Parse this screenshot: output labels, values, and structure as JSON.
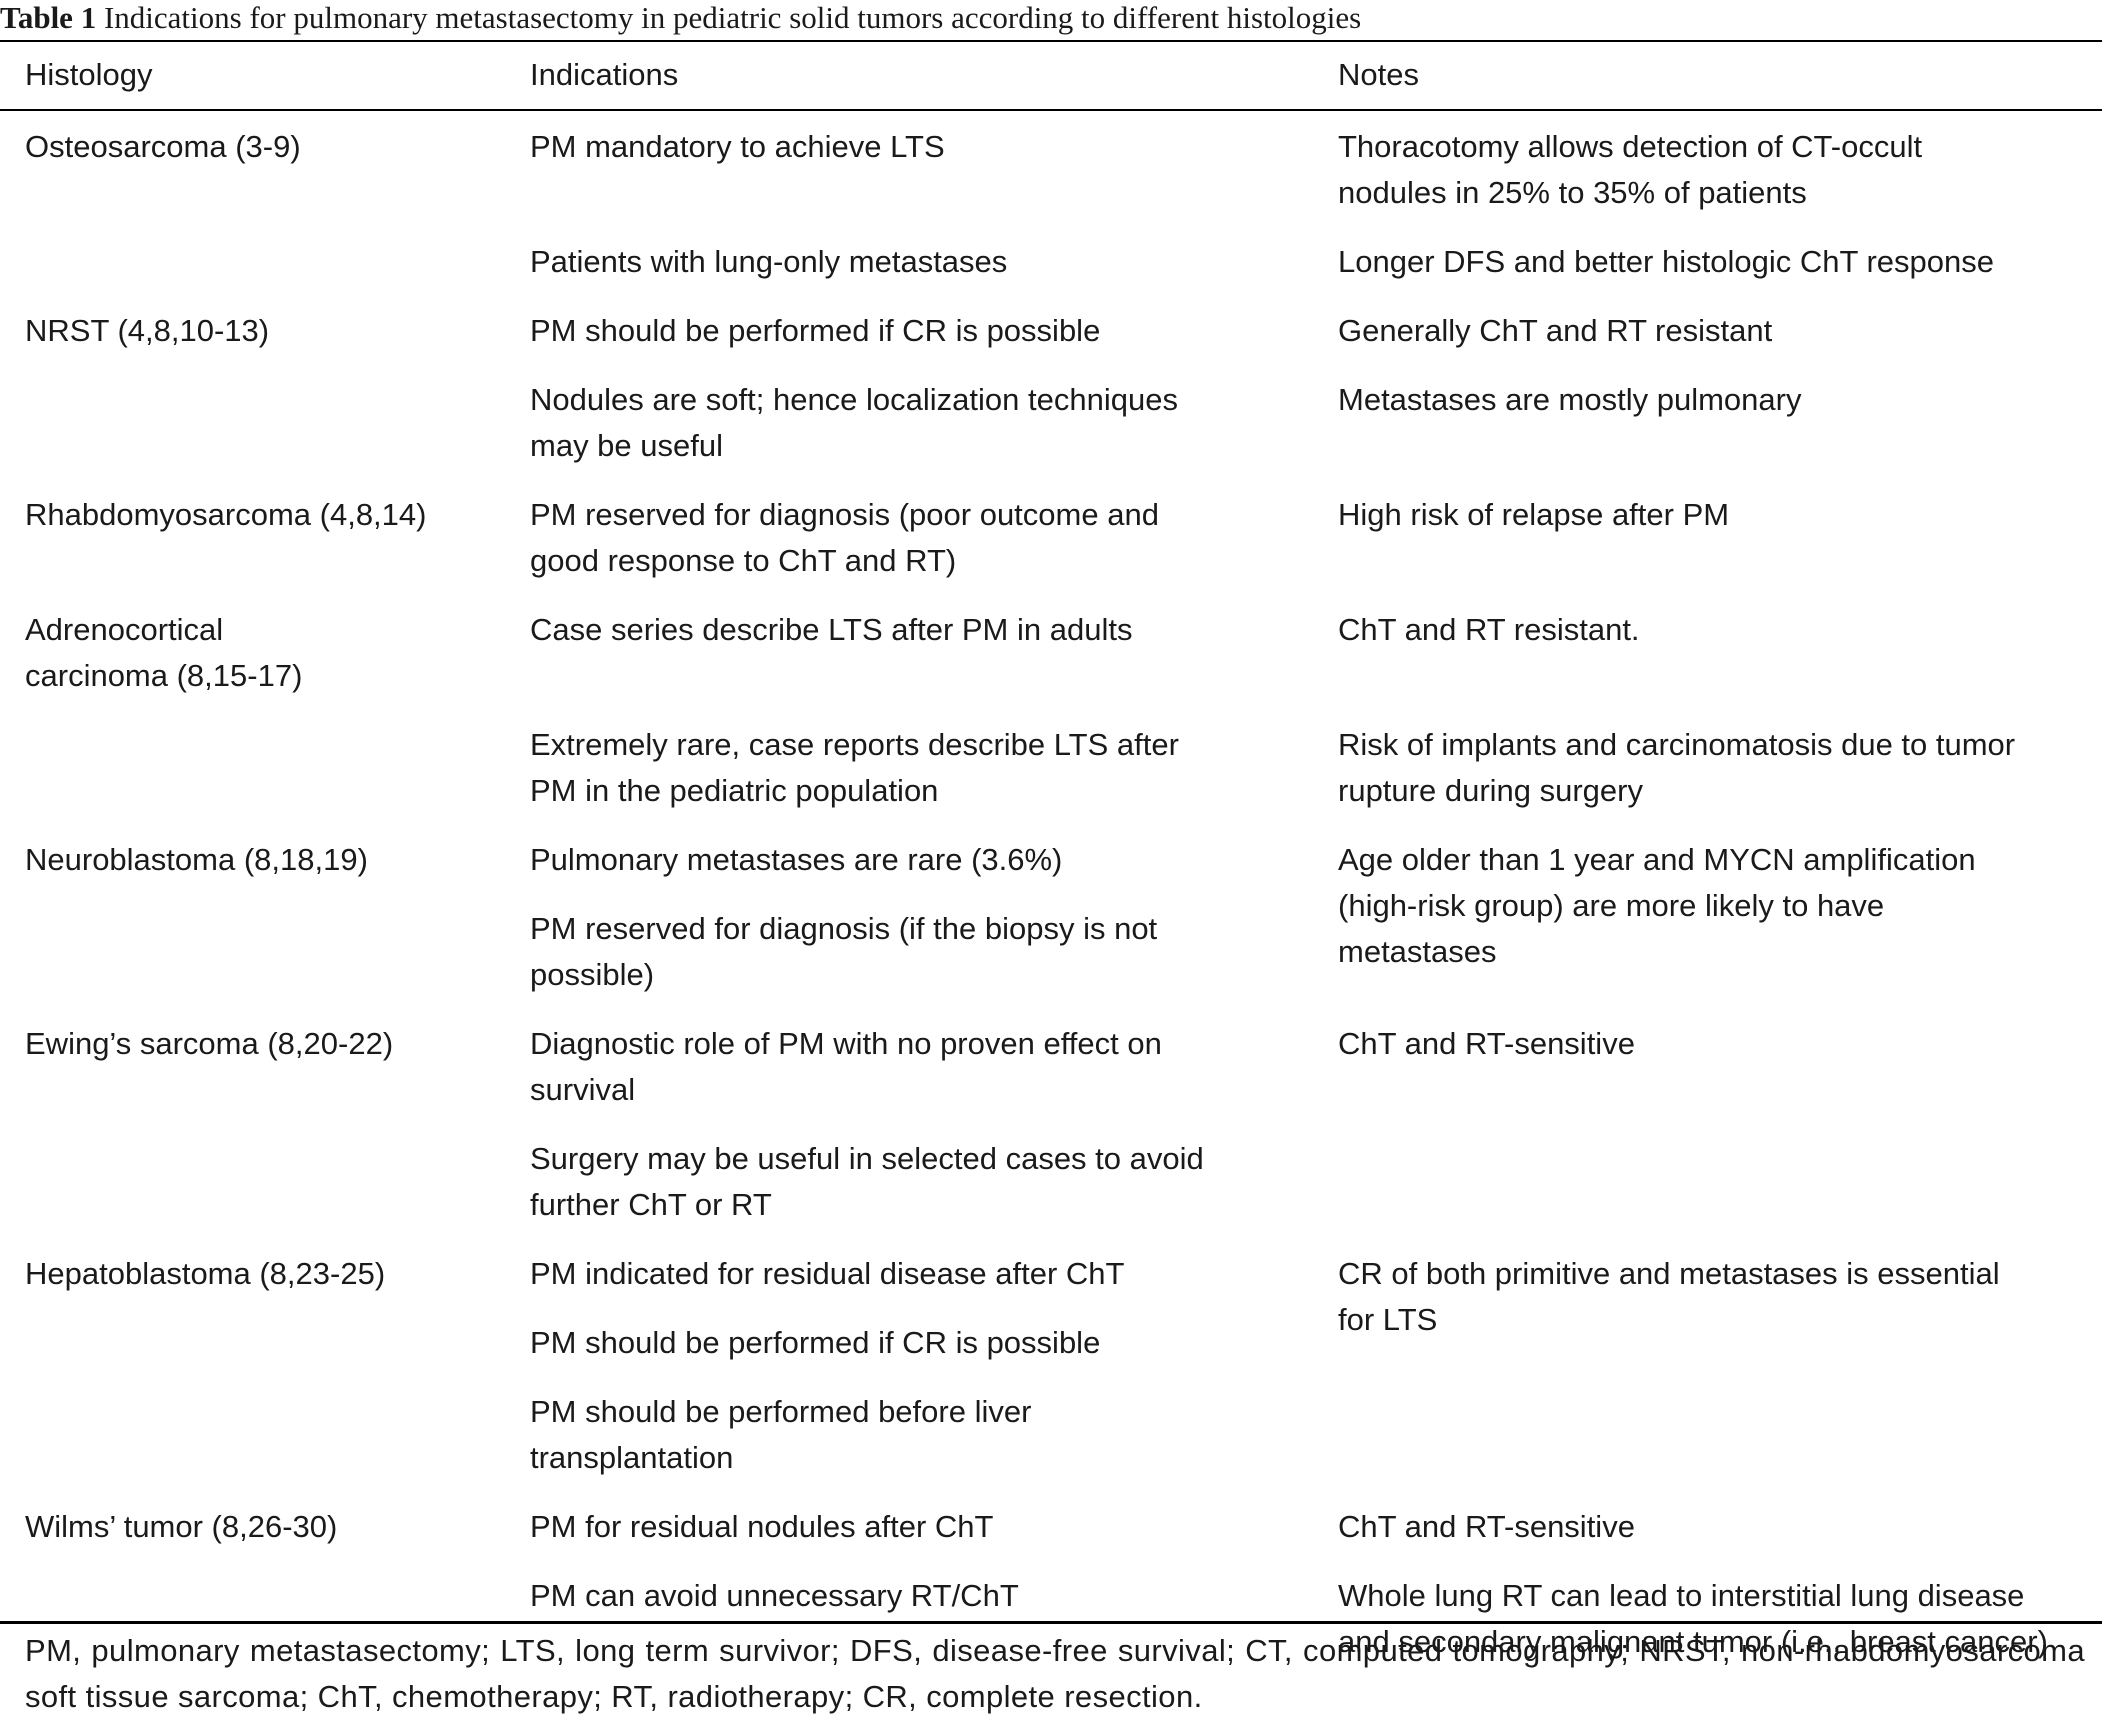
{
  "table": {
    "caption_label": "Table 1",
    "caption_text": "Indications for pulmonary metastasectomy in pediatric solid tumors according to different histologies",
    "headers": [
      "Histology",
      "Indications",
      "Notes"
    ],
    "rows": [
      {
        "histology": [
          "Osteosarcoma (3-9)"
        ],
        "indication": [
          "PM mandatory to achieve LTS"
        ],
        "notes": [
          "Thoracotomy allows detection of CT-occult",
          "nodules in 25% to 35% of patients"
        ]
      },
      {
        "histology": [],
        "indication": [
          "Patients with lung-only metastases"
        ],
        "notes": [
          "Longer DFS and better histologic ChT response"
        ]
      },
      {
        "histology": [
          "NRST (4,8,10-13)"
        ],
        "indication": [
          "PM should be performed if CR is possible"
        ],
        "notes": [
          "Generally ChT and RT resistant"
        ]
      },
      {
        "histology": [],
        "indication": [
          "Nodules are soft; hence localization techniques",
          "may be useful"
        ],
        "notes": [
          "Metastases are mostly pulmonary"
        ]
      },
      {
        "histology": [
          "Rhabdomyosarcoma (4,8,14)"
        ],
        "indication": [
          "PM reserved for diagnosis (poor outcome and",
          "good response to ChT and RT)"
        ],
        "notes": [
          "High risk of relapse after PM"
        ]
      },
      {
        "histology": [
          "Adrenocortical",
          "carcinoma (8,15-17)"
        ],
        "indication": [
          "Case series describe LTS after PM in adults"
        ],
        "notes": [
          "ChT and RT resistant."
        ]
      },
      {
        "histology": [],
        "indication": [
          "Extremely rare, case reports describe LTS after",
          "PM in the pediatric population"
        ],
        "notes": [
          "Risk of implants and carcinomatosis due to tumor",
          "rupture during surgery"
        ]
      },
      {
        "histology": [
          "Neuroblastoma (8,18,19)"
        ],
        "indication": [
          "Pulmonary metastases are rare (3.6%)"
        ],
        "notes": [
          "Age older than 1 year and MYCN amplification",
          "(high-risk group) are more likely to have",
          "metastases"
        ]
      },
      {
        "histology": [],
        "indication": [
          "PM reserved for diagnosis (if the biopsy is not",
          "possible)"
        ],
        "notes": []
      },
      {
        "histology": [
          "Ewing’s sarcoma (8,20-22)"
        ],
        "indication": [
          "Diagnostic role of PM with no proven effect on",
          "survival"
        ],
        "notes": [
          "ChT and RT-sensitive"
        ]
      },
      {
        "histology": [],
        "indication": [
          "Surgery may be useful in selected cases to avoid",
          "further ChT or RT"
        ],
        "notes": []
      },
      {
        "histology": [
          "Hepatoblastoma (8,23-25)"
        ],
        "indication": [
          "PM indicated for residual disease after ChT"
        ],
        "notes": [
          "CR of both primitive and metastases is essential",
          "for LTS"
        ]
      },
      {
        "histology": [],
        "indication": [
          "PM should be performed if CR is possible"
        ],
        "notes": []
      },
      {
        "histology": [],
        "indication": [
          "PM should be performed before liver",
          "transplantation"
        ],
        "notes": []
      },
      {
        "histology": [
          "Wilms’ tumor (8,26-30)"
        ],
        "indication": [
          "PM for residual nodules after ChT"
        ],
        "notes": [
          "ChT and RT-sensitive"
        ]
      },
      {
        "histology": [],
        "indication": [
          "PM can avoid unnecessary RT/ChT"
        ],
        "notes": [
          "Whole lung RT can lead to interstitial lung disease",
          "and secondary malignant tumor (i.e., breast cancer)"
        ]
      }
    ],
    "footnote": "PM, pulmonary metastasectomy; LTS, long term survivor; DFS, disease-free survival; CT, computed tomography; NRST, non-rhabdomyosarcoma soft tissue sarcoma; ChT, chemotherapy; RT, radiotherapy; CR, complete resection."
  }
}
